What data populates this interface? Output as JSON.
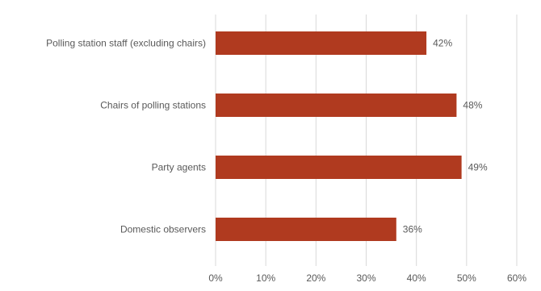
{
  "chart_data": {
    "type": "bar",
    "orientation": "horizontal",
    "categories": [
      "Polling station staff (excluding chairs)",
      "Chairs of polling stations",
      "Party agents",
      "Domestic observers"
    ],
    "values": [
      42,
      48,
      49,
      36
    ],
    "data_labels": [
      "42%",
      "48%",
      "49%",
      "36%"
    ],
    "xlim": [
      0,
      60
    ],
    "x_ticks": [
      0,
      10,
      20,
      30,
      40,
      50,
      60
    ],
    "x_tick_labels": [
      "0%",
      "10%",
      "20%",
      "30%",
      "40%",
      "50%",
      "60%"
    ],
    "grid": "vertical",
    "legend": "none",
    "bar_color": "#b03a1f",
    "grid_color": "#d9d9d9",
    "text_color": "#595959"
  }
}
